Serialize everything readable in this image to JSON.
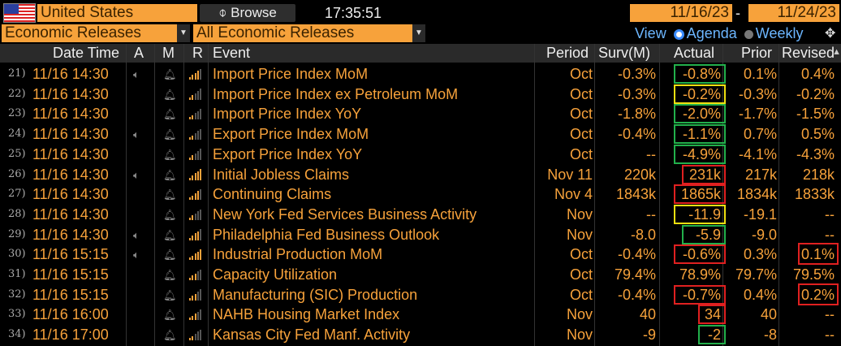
{
  "topbar": {
    "country": "United States",
    "browse_label": "Browse",
    "time": "17:35:51",
    "date_from": "11/16/23",
    "date_to": "11/24/23",
    "date_sep": "-"
  },
  "filters": {
    "category": "Economic Releases",
    "subcategory": "All Economic Releases"
  },
  "view": {
    "label": "View",
    "options": [
      {
        "label": "Agenda",
        "selected": true
      },
      {
        "label": "Weekly",
        "selected": false
      }
    ]
  },
  "columns": [
    "Date Time",
    "A",
    "M",
    "R",
    "Event",
    "Period",
    "Surv(M)",
    "Actual",
    "Prior",
    "Revised"
  ],
  "rows": [
    {
      "n": "21)",
      "dt": "11/16 14:30",
      "audio": true,
      "bars": 4,
      "event": "Import Price Index MoM",
      "period": "Oct",
      "surv": "-0.3%",
      "actual": "-0.8%",
      "prior": "0.1%",
      "revised": "0.4%",
      "actual_box": "green",
      "revised_box": ""
    },
    {
      "n": "22)",
      "dt": "11/16 14:30",
      "audio": false,
      "bars": 2,
      "event": "Import Price Index ex Petroleum MoM",
      "period": "Oct",
      "surv": "-0.3%",
      "actual": "-0.2%",
      "prior": "-0.3%",
      "revised": "-0.2%",
      "actual_box": "yellow",
      "revised_box": ""
    },
    {
      "n": "23)",
      "dt": "11/16 14:30",
      "audio": false,
      "bars": 2,
      "event": "Import Price Index YoY",
      "period": "Oct",
      "surv": "-1.8%",
      "actual": "-2.0%",
      "prior": "-1.7%",
      "revised": "-1.5%",
      "actual_box": "green",
      "revised_box": ""
    },
    {
      "n": "24)",
      "dt": "11/16 14:30",
      "audio": true,
      "bars": 2,
      "event": "Export Price Index MoM",
      "period": "Oct",
      "surv": "-0.4%",
      "actual": "-1.1%",
      "prior": "0.7%",
      "revised": "0.5%",
      "actual_box": "green",
      "revised_box": ""
    },
    {
      "n": "25)",
      "dt": "11/16 14:30",
      "audio": false,
      "bars": 2,
      "event": "Export Price Index YoY",
      "period": "Oct",
      "surv": "--",
      "actual": "-4.9%",
      "prior": "-4.1%",
      "revised": "-4.3%",
      "actual_box": "green",
      "revised_box": ""
    },
    {
      "n": "26)",
      "dt": "11/16 14:30",
      "audio": true,
      "bars": 5,
      "event": "Initial Jobless Claims",
      "period": "Nov 11",
      "surv": "220k",
      "actual": "231k",
      "prior": "217k",
      "revised": "218k",
      "actual_box": "red",
      "revised_box": ""
    },
    {
      "n": "27)",
      "dt": "11/16 14:30",
      "audio": false,
      "bars": 4,
      "event": "Continuing Claims",
      "period": "Nov 4",
      "surv": "1843k",
      "actual": "1865k",
      "prior": "1834k",
      "revised": "1833k",
      "actual_box": "red",
      "revised_box": ""
    },
    {
      "n": "28)",
      "dt": "11/16 14:30",
      "audio": false,
      "bars": 2,
      "event": "New York Fed Services Business Activity",
      "period": "Nov",
      "surv": "--",
      "actual": "-11.9",
      "prior": "-19.1",
      "revised": "--",
      "actual_box": "yellow",
      "revised_box": ""
    },
    {
      "n": "29)",
      "dt": "11/16 14:30",
      "audio": true,
      "bars": 4,
      "event": "Philadelphia Fed Business Outlook",
      "period": "Nov",
      "surv": "-8.0",
      "actual": "-5.9",
      "prior": "-9.0",
      "revised": "--",
      "actual_box": "green",
      "revised_box": ""
    },
    {
      "n": "30)",
      "dt": "11/16 15:15",
      "audio": true,
      "bars": 5,
      "event": "Industrial Production MoM",
      "period": "Oct",
      "surv": "-0.4%",
      "actual": "-0.6%",
      "prior": "0.3%",
      "revised": "0.1%",
      "actual_box": "red",
      "revised_box": "red"
    },
    {
      "n": "31)",
      "dt": "11/16 15:15",
      "audio": false,
      "bars": 3,
      "event": "Capacity Utilization",
      "period": "Oct",
      "surv": "79.4%",
      "actual": "78.9%",
      "prior": "79.7%",
      "revised": "79.5%",
      "actual_box": "",
      "revised_box": ""
    },
    {
      "n": "32)",
      "dt": "11/16 15:15",
      "audio": false,
      "bars": 3,
      "event": "Manufacturing (SIC) Production",
      "period": "Oct",
      "surv": "-0.4%",
      "actual": "-0.7%",
      "prior": "0.4%",
      "revised": "0.2%",
      "actual_box": "red",
      "revised_box": "red"
    },
    {
      "n": "33)",
      "dt": "11/16 16:00",
      "audio": false,
      "bars": 3,
      "event": "NAHB Housing Market Index",
      "period": "Nov",
      "surv": "40",
      "actual": "34",
      "prior": "40",
      "revised": "--",
      "actual_box": "red",
      "revised_box": ""
    },
    {
      "n": "34)",
      "dt": "11/16 17:00",
      "audio": false,
      "bars": 2,
      "event": "Kansas City Fed Manf. Activity",
      "period": "Nov",
      "surv": "-9",
      "actual": "-2",
      "prior": "-8",
      "revised": "--",
      "actual_box": "green",
      "revised_box": ""
    }
  ],
  "colors": {
    "accent": "#f7a23b",
    "box_green": "#22b04b",
    "box_red": "#e02020",
    "box_yellow": "#f0e010",
    "header_bg": "#2a2a2a"
  }
}
